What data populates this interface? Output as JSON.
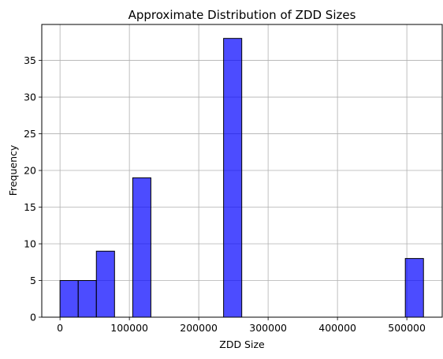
{
  "chart_data": {
    "type": "bar",
    "title": "Approximate Distribution of ZDD Sizes",
    "xlabel": "ZDD Size",
    "ylabel": "Frequency",
    "xlim": [
      -26300,
      551000
    ],
    "ylim": [
      0,
      39.9
    ],
    "xticks": [
      0,
      100000,
      200000,
      300000,
      400000,
      500000
    ],
    "xtick_labels": [
      "0",
      "100000",
      "200000",
      "300000",
      "400000",
      "500000"
    ],
    "yticks": [
      0,
      5,
      10,
      15,
      20,
      25,
      30,
      35
    ],
    "ytick_labels": [
      "0",
      "5",
      "10",
      "15",
      "20",
      "25",
      "30",
      "35"
    ],
    "grid": true,
    "bar_color": "#0000ff",
    "bar_opacity": 0.7,
    "edge_color": "#000000",
    "bins": [
      {
        "x0": 0,
        "x1": 26200,
        "count": 5
      },
      {
        "x0": 26200,
        "x1": 52400,
        "count": 5
      },
      {
        "x0": 52400,
        "x1": 78600,
        "count": 9
      },
      {
        "x0": 104800,
        "x1": 131000,
        "count": 19
      },
      {
        "x0": 235800,
        "x1": 262000,
        "count": 38
      },
      {
        "x0": 497800,
        "x1": 524000,
        "count": 8
      }
    ]
  }
}
